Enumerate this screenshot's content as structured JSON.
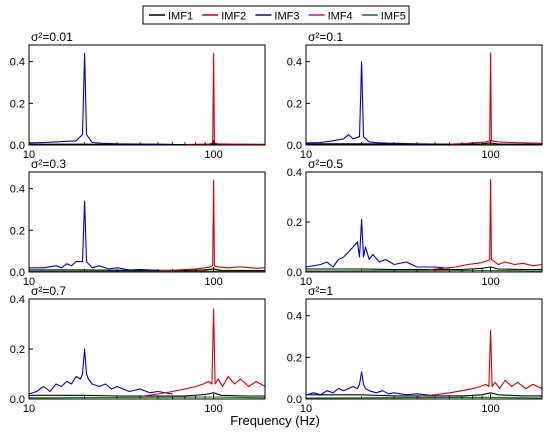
{
  "figure": {
    "xlabel": "Frequency (Hz)"
  },
  "legend": {
    "placement": "top-center",
    "entries": [
      {
        "name": "IMF1",
        "color": "#000000"
      },
      {
        "name": "IMF2",
        "color": "#d40000"
      },
      {
        "name": "IMF3",
        "color": "#0000cc"
      },
      {
        "name": "IMF4",
        "color": "#cc00cc"
      },
      {
        "name": "IMF5",
        "color": "#008000"
      }
    ]
  },
  "chart_data": [
    {
      "type": "line",
      "title": "σ²=0.01",
      "xscale": "log",
      "xlim": [
        10,
        190
      ],
      "ylim": [
        0,
        0.48
      ],
      "yticks": [
        "0.0",
        "0.2",
        "0.4"
      ],
      "xticks": [
        {
          "value": 10,
          "label": "10"
        },
        {
          "value": 100,
          "label": "100"
        }
      ],
      "series": [
        {
          "name": "IMF1",
          "x": [
            10,
            20,
            30,
            50,
            70,
            90,
            100,
            110,
            150,
            190
          ],
          "y": [
            0.004,
            0.004,
            0.003,
            0.003,
            0.002,
            0.003,
            0.006,
            0.003,
            0.003,
            0.003
          ]
        },
        {
          "name": "IMF2",
          "x": [
            70,
            85,
            95,
            99,
            100,
            101,
            105,
            120,
            150,
            190
          ],
          "y": [
            0.002,
            0.004,
            0.005,
            0.01,
            0.44,
            0.01,
            0.006,
            0.005,
            0.004,
            0.003
          ]
        },
        {
          "name": "IMF3",
          "x": [
            10,
            12,
            14,
            16,
            18,
            19.5,
            20,
            20.5,
            22,
            25,
            30,
            40,
            50,
            60
          ],
          "y": [
            0.01,
            0.012,
            0.015,
            0.018,
            0.02,
            0.05,
            0.44,
            0.05,
            0.012,
            0.008,
            0.006,
            0.005,
            0.004,
            0.003
          ]
        },
        {
          "name": "IMF4",
          "x": [
            10,
            190
          ],
          "y": [
            0.0,
            0.0
          ]
        },
        {
          "name": "IMF5",
          "x": [
            10,
            100,
            190
          ],
          "y": [
            0.001,
            0.002,
            0.001
          ]
        }
      ]
    },
    {
      "type": "line",
      "title": "σ²=0.1",
      "xscale": "log",
      "xlim": [
        10,
        190
      ],
      "ylim": [
        0,
        0.48
      ],
      "yticks": [
        "0.0",
        "0.2",
        "0.4"
      ],
      "xticks": [
        {
          "value": 10,
          "label": "10"
        },
        {
          "value": 100,
          "label": "100"
        }
      ],
      "series": [
        {
          "name": "IMF1",
          "x": [
            10,
            20,
            30,
            50,
            70,
            90,
            100,
            110,
            150,
            190
          ],
          "y": [
            0.006,
            0.006,
            0.005,
            0.005,
            0.004,
            0.006,
            0.01,
            0.005,
            0.004,
            0.004
          ]
        },
        {
          "name": "IMF2",
          "x": [
            60,
            75,
            85,
            95,
            99,
            100,
            101,
            110,
            130,
            160,
            190
          ],
          "y": [
            0.004,
            0.008,
            0.012,
            0.015,
            0.02,
            0.44,
            0.02,
            0.015,
            0.012,
            0.01,
            0.008
          ]
        },
        {
          "name": "IMF3",
          "x": [
            10,
            12,
            14,
            16,
            17,
            18,
            19.5,
            20,
            20.5,
            22,
            25,
            30,
            40,
            50
          ],
          "y": [
            0.01,
            0.012,
            0.02,
            0.03,
            0.05,
            0.03,
            0.04,
            0.4,
            0.04,
            0.015,
            0.01,
            0.008,
            0.006,
            0.005
          ]
        },
        {
          "name": "IMF4",
          "x": [
            10,
            190
          ],
          "y": [
            0.0,
            0.0
          ]
        },
        {
          "name": "IMF5",
          "x": [
            10,
            100,
            190
          ],
          "y": [
            0.002,
            0.003,
            0.002
          ]
        }
      ]
    },
    {
      "type": "line",
      "title": "σ²=0.3",
      "xscale": "log",
      "xlim": [
        10,
        190
      ],
      "ylim": [
        0,
        0.48
      ],
      "yticks": [
        "0.0",
        "0.2",
        "0.4"
      ],
      "xticks": [
        {
          "value": 10,
          "label": "10"
        },
        {
          "value": 100,
          "label": "100"
        }
      ],
      "series": [
        {
          "name": "IMF1",
          "x": [
            10,
            20,
            30,
            50,
            70,
            90,
            100,
            110,
            150,
            190
          ],
          "y": [
            0.01,
            0.01,
            0.008,
            0.008,
            0.007,
            0.01,
            0.015,
            0.008,
            0.007,
            0.007
          ]
        },
        {
          "name": "IMF2",
          "x": [
            50,
            65,
            80,
            90,
            96,
            99,
            100,
            101,
            105,
            120,
            140,
            170,
            190
          ],
          "y": [
            0.006,
            0.01,
            0.015,
            0.02,
            0.025,
            0.03,
            0.44,
            0.03,
            0.025,
            0.02,
            0.025,
            0.018,
            0.02
          ]
        },
        {
          "name": "IMF3",
          "x": [
            10,
            12,
            14,
            15,
            16,
            17,
            18,
            19.5,
            20,
            20.5,
            22,
            24,
            27,
            30,
            35,
            40,
            50
          ],
          "y": [
            0.02,
            0.02,
            0.03,
            0.02,
            0.04,
            0.03,
            0.05,
            0.05,
            0.34,
            0.05,
            0.02,
            0.03,
            0.015,
            0.02,
            0.01,
            0.012,
            0.008
          ]
        },
        {
          "name": "IMF4",
          "x": [
            10,
            190
          ],
          "y": [
            0.0,
            0.0
          ]
        },
        {
          "name": "IMF5",
          "x": [
            10,
            100,
            190
          ],
          "y": [
            0.003,
            0.004,
            0.003
          ]
        }
      ]
    },
    {
      "type": "line",
      "title": "σ²=0.5",
      "xscale": "log",
      "xlim": [
        10,
        190
      ],
      "ylim": [
        0,
        0.4
      ],
      "yticks": [
        "0.0",
        "0.2",
        "0.4"
      ],
      "xticks": [
        {
          "value": 10,
          "label": "10"
        },
        {
          "value": 100,
          "label": "100"
        }
      ],
      "series": [
        {
          "name": "IMF1",
          "x": [
            10,
            20,
            30,
            50,
            70,
            90,
            100,
            110,
            150,
            190
          ],
          "y": [
            0.012,
            0.012,
            0.01,
            0.01,
            0.01,
            0.015,
            0.02,
            0.012,
            0.01,
            0.01
          ]
        },
        {
          "name": "IMF2",
          "x": [
            45,
            55,
            65,
            75,
            85,
            92,
            96,
            99,
            100,
            101,
            104,
            110,
            120,
            135,
            150,
            170,
            190
          ],
          "y": [
            0.008,
            0.015,
            0.02,
            0.03,
            0.035,
            0.04,
            0.045,
            0.05,
            0.37,
            0.05,
            0.045,
            0.03,
            0.04,
            0.03,
            0.035,
            0.025,
            0.03
          ]
        },
        {
          "name": "IMF3",
          "x": [
            10,
            12,
            13,
            14,
            15,
            16,
            17,
            18,
            19,
            19.5,
            20,
            20.5,
            21,
            22,
            23,
            25,
            27,
            30,
            35,
            40,
            50,
            60
          ],
          "y": [
            0.02,
            0.03,
            0.04,
            0.02,
            0.05,
            0.06,
            0.08,
            0.1,
            0.12,
            0.06,
            0.21,
            0.06,
            0.1,
            0.05,
            0.07,
            0.04,
            0.05,
            0.03,
            0.04,
            0.02,
            0.02,
            0.015
          ]
        },
        {
          "name": "IMF4",
          "x": [
            10,
            190
          ],
          "y": [
            0.0,
            0.0
          ]
        },
        {
          "name": "IMF5",
          "x": [
            10,
            100,
            190
          ],
          "y": [
            0.004,
            0.006,
            0.004
          ]
        }
      ]
    },
    {
      "type": "line",
      "title": "σ²=0.7",
      "xscale": "log",
      "xlim": [
        10,
        190
      ],
      "ylim": [
        0,
        0.4
      ],
      "yticks": [
        "0.0",
        "0.2",
        "0.4"
      ],
      "xticks": [
        {
          "value": 10,
          "label": "10"
        },
        {
          "value": 100,
          "label": "100"
        }
      ],
      "series": [
        {
          "name": "IMF1",
          "x": [
            10,
            20,
            30,
            50,
            70,
            90,
            100,
            110,
            150,
            190
          ],
          "y": [
            0.015,
            0.015,
            0.012,
            0.012,
            0.012,
            0.018,
            0.025,
            0.015,
            0.012,
            0.012
          ]
        },
        {
          "name": "IMF2",
          "x": [
            40,
            50,
            60,
            70,
            80,
            88,
            94,
            98,
            100,
            102,
            106,
            112,
            120,
            130,
            140,
            155,
            170,
            190
          ],
          "y": [
            0.01,
            0.02,
            0.03,
            0.04,
            0.05,
            0.06,
            0.07,
            0.06,
            0.36,
            0.06,
            0.08,
            0.05,
            0.09,
            0.06,
            0.08,
            0.05,
            0.07,
            0.05
          ]
        },
        {
          "name": "IMF3",
          "x": [
            10,
            11,
            12,
            13,
            14,
            15,
            16,
            17,
            18,
            19,
            19.5,
            20,
            20.5,
            21,
            22,
            24,
            26,
            28,
            30,
            35,
            40,
            45,
            50,
            60
          ],
          "y": [
            0.02,
            0.03,
            0.05,
            0.03,
            0.06,
            0.05,
            0.07,
            0.06,
            0.09,
            0.08,
            0.1,
            0.2,
            0.1,
            0.08,
            0.06,
            0.05,
            0.06,
            0.04,
            0.05,
            0.03,
            0.04,
            0.025,
            0.03,
            0.02
          ]
        },
        {
          "name": "IMF4",
          "x": [
            10,
            190
          ],
          "y": [
            0.0,
            0.0
          ]
        },
        {
          "name": "IMF5",
          "x": [
            10,
            100,
            190
          ],
          "y": [
            0.005,
            0.008,
            0.005
          ]
        }
      ]
    },
    {
      "type": "line",
      "title": "σ²=1",
      "xscale": "log",
      "xlim": [
        10,
        190
      ],
      "ylim": [
        0,
        0.48
      ],
      "yticks": [
        "0.0",
        "0.2",
        "0.4"
      ],
      "xticks": [
        {
          "value": 10,
          "label": "10"
        },
        {
          "value": 100,
          "label": "100"
        }
      ],
      "series": [
        {
          "name": "IMF1",
          "x": [
            10,
            20,
            30,
            50,
            70,
            90,
            100,
            110,
            150,
            190
          ],
          "y": [
            0.02,
            0.02,
            0.015,
            0.015,
            0.015,
            0.02,
            0.03,
            0.02,
            0.015,
            0.015
          ]
        },
        {
          "name": "IMF2",
          "x": [
            40,
            50,
            60,
            70,
            80,
            88,
            94,
            98,
            100,
            102,
            106,
            112,
            120,
            130,
            140,
            155,
            170,
            190
          ],
          "y": [
            0.012,
            0.02,
            0.03,
            0.04,
            0.05,
            0.06,
            0.07,
            0.06,
            0.33,
            0.06,
            0.08,
            0.05,
            0.09,
            0.06,
            0.08,
            0.05,
            0.07,
            0.05
          ]
        },
        {
          "name": "IMF3",
          "x": [
            10,
            11,
            12,
            13,
            14,
            15,
            16,
            17,
            18,
            19,
            19.5,
            20,
            20.5,
            21,
            22,
            24,
            26,
            28,
            30,
            35,
            40,
            50,
            60
          ],
          "y": [
            0.02,
            0.03,
            0.02,
            0.04,
            0.03,
            0.05,
            0.04,
            0.05,
            0.06,
            0.05,
            0.07,
            0.13,
            0.07,
            0.05,
            0.04,
            0.03,
            0.04,
            0.025,
            0.03,
            0.02,
            0.025,
            0.015,
            0.015
          ]
        },
        {
          "name": "IMF4",
          "x": [
            10,
            190
          ],
          "y": [
            0.0,
            0.0
          ]
        },
        {
          "name": "IMF5",
          "x": [
            10,
            100,
            190
          ],
          "y": [
            0.005,
            0.008,
            0.005
          ]
        }
      ]
    }
  ]
}
